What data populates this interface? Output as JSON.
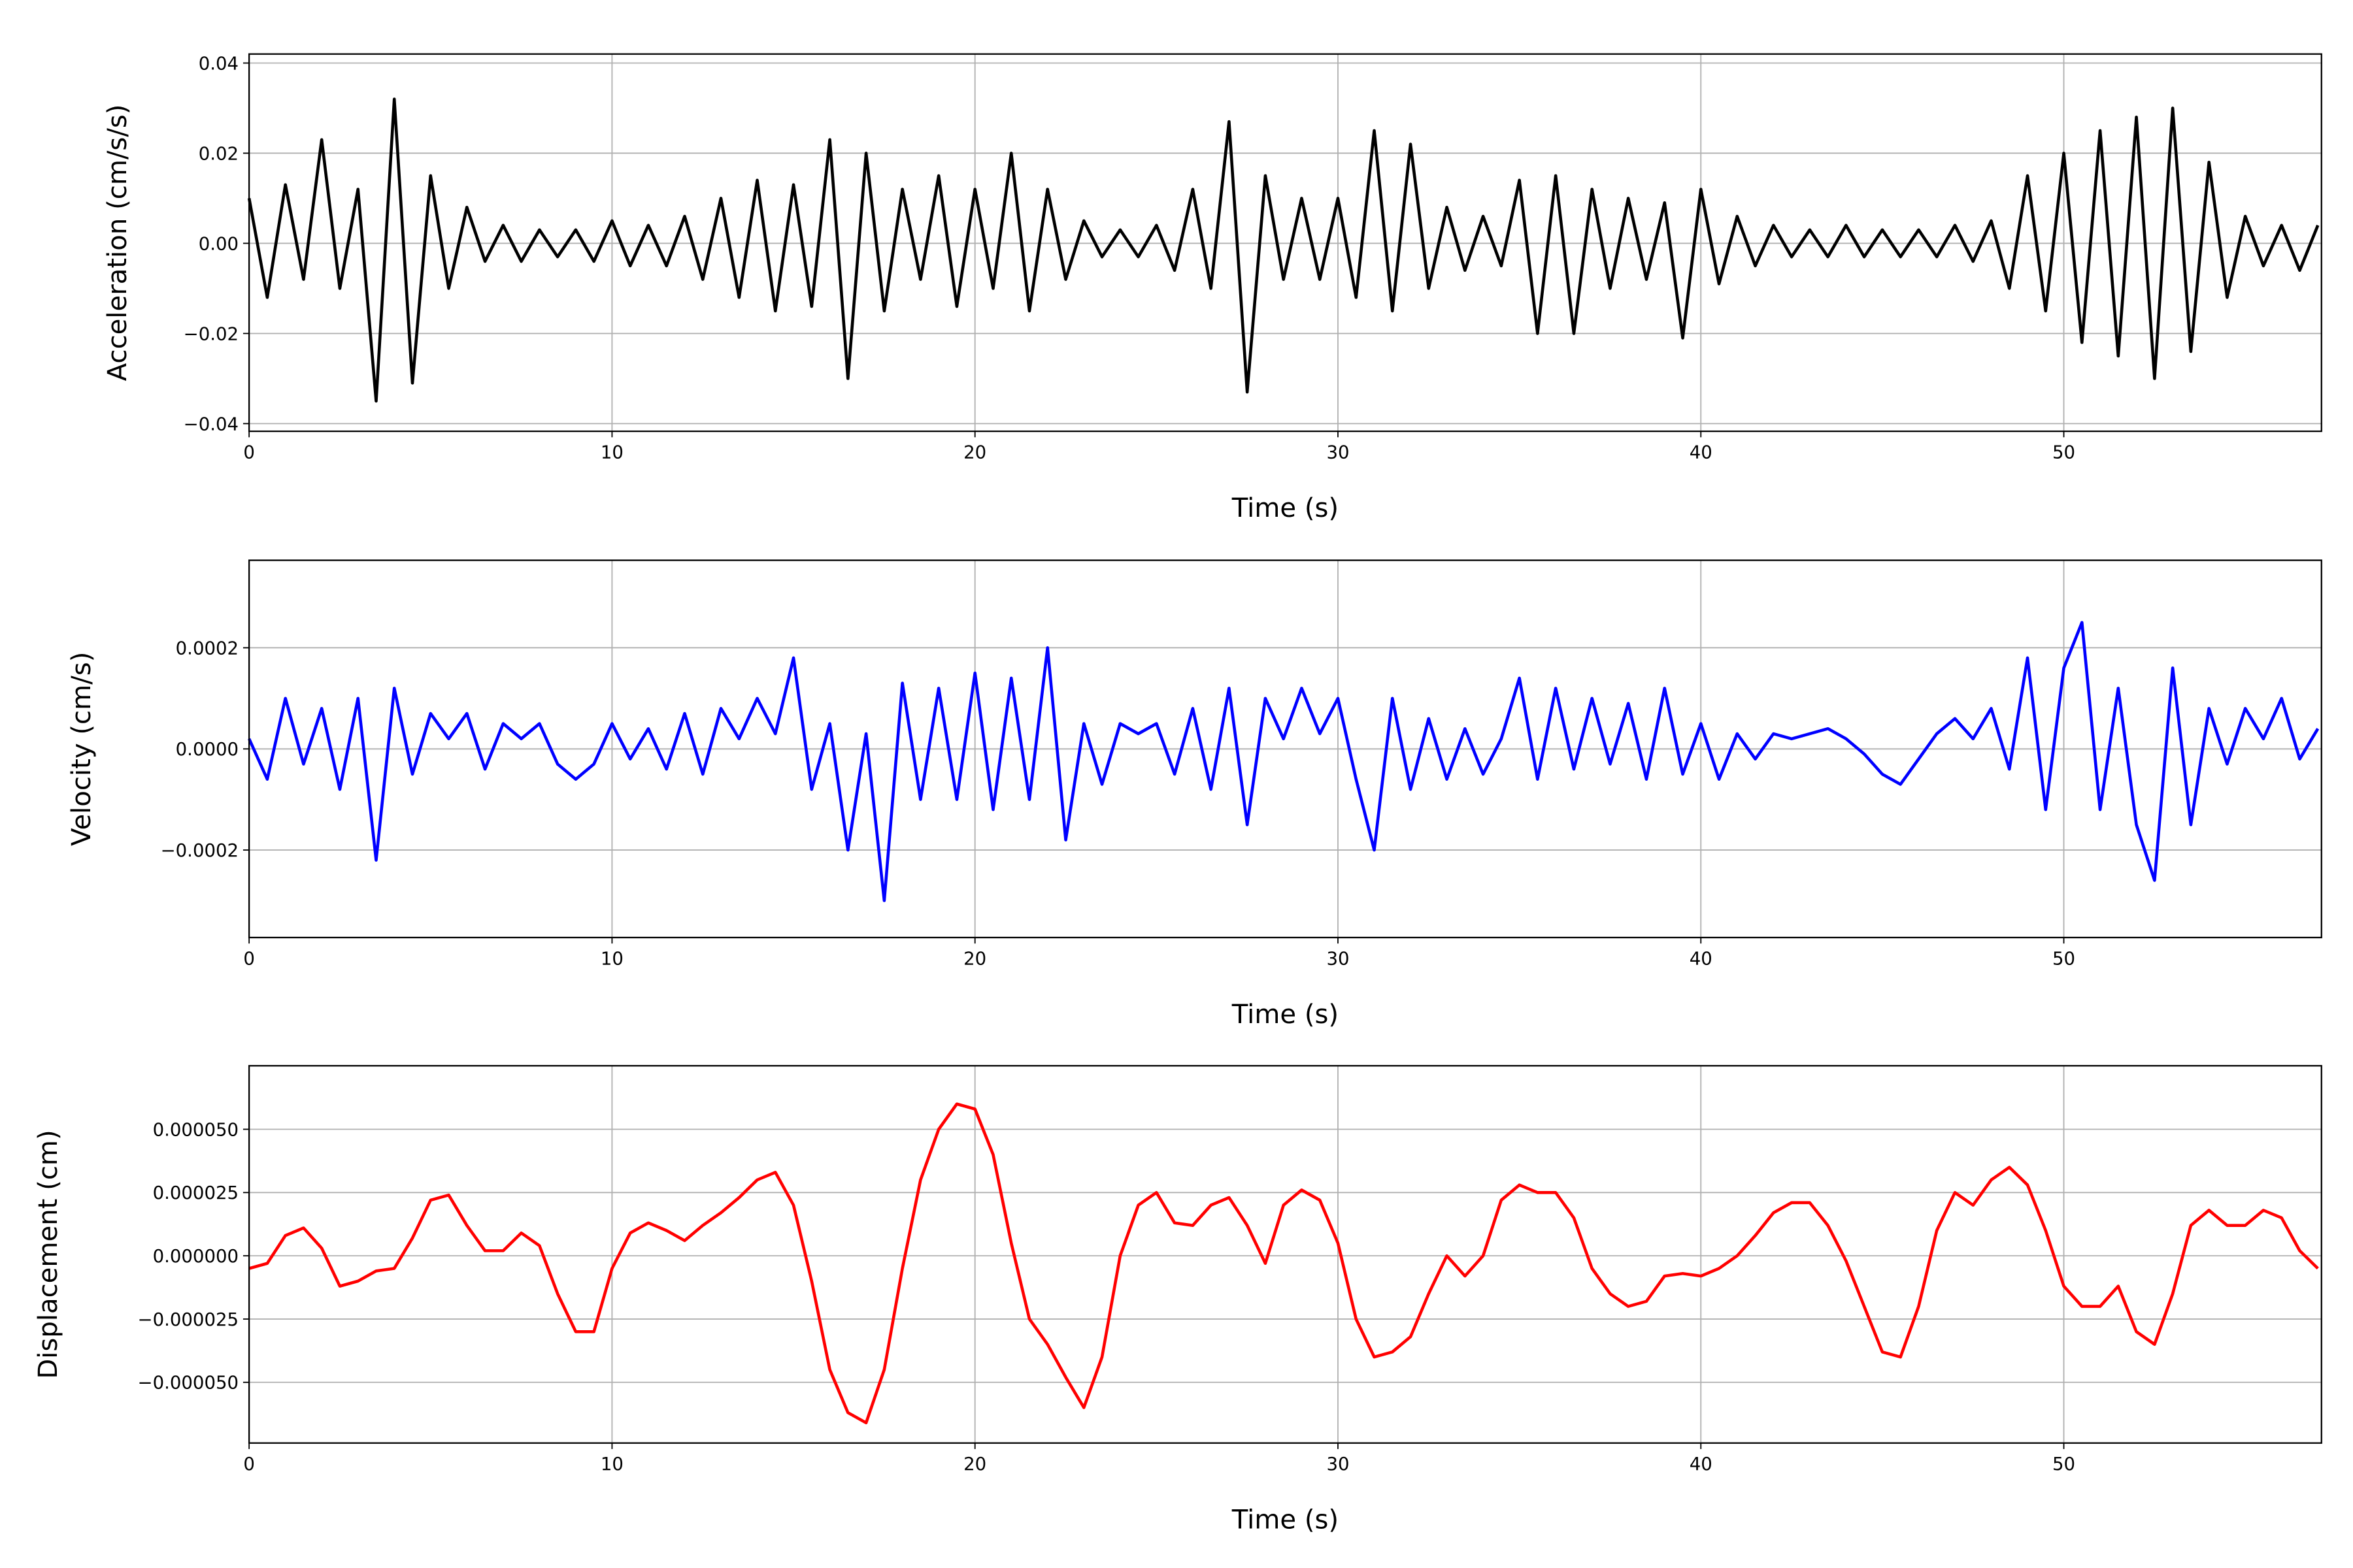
{
  "chart_data": [
    {
      "type": "line",
      "color": "#000000",
      "xlabel": "Time (s)",
      "ylabel": "Acceleration (cm/s/s)",
      "grid": true,
      "xlim": [
        0,
        57.1
      ],
      "xticks": [
        0,
        10,
        20,
        30,
        40,
        50
      ],
      "ylim": [
        -0.0417,
        0.042
      ],
      "yticks": [
        {
          "value": -0.04,
          "label": "−0.04"
        },
        {
          "value": -0.02,
          "label": "−0.02"
        },
        {
          "value": 0,
          "label": "0.00"
        },
        {
          "value": 0.02,
          "label": "0.02"
        },
        {
          "value": 0.04,
          "label": "0.04"
        }
      ],
      "x": [
        0,
        0.5,
        1,
        1.5,
        2,
        2.5,
        3,
        3.5,
        4,
        4.5,
        5,
        5.5,
        6,
        6.5,
        7,
        7.5,
        8,
        8.5,
        9,
        9.5,
        10,
        10.5,
        11,
        11.5,
        12,
        12.5,
        13,
        13.5,
        14,
        14.5,
        15,
        15.5,
        16,
        16.5,
        17,
        17.5,
        18,
        18.5,
        19,
        19.5,
        20,
        20.5,
        21,
        21.5,
        22,
        22.5,
        23,
        23.5,
        24,
        24.5,
        25,
        25.5,
        26,
        26.5,
        27,
        27.5,
        28,
        28.5,
        29,
        29.5,
        30,
        30.5,
        31,
        31.5,
        32,
        32.5,
        33,
        33.5,
        34,
        34.5,
        35,
        35.5,
        36,
        36.5,
        37,
        37.5,
        38,
        38.5,
        39,
        39.5,
        40,
        40.5,
        41,
        41.5,
        42,
        42.5,
        43,
        43.5,
        44,
        44.5,
        45,
        45.5,
        46,
        46.5,
        47,
        47.5,
        48,
        48.5,
        49,
        49.5,
        50,
        50.5,
        51,
        51.5,
        52,
        52.5,
        53,
        53.5,
        54,
        54.5,
        55,
        55.5,
        56,
        56.5,
        57
      ],
      "values": [
        0.01,
        -0.012,
        0.013,
        -0.008,
        0.023,
        -0.01,
        0.012,
        -0.035,
        0.032,
        -0.031,
        0.015,
        -0.01,
        0.008,
        -0.004,
        0.004,
        -0.004,
        0.003,
        -0.003,
        0.003,
        -0.004,
        0.005,
        -0.005,
        0.004,
        -0.005,
        0.006,
        -0.008,
        0.01,
        -0.012,
        0.014,
        -0.015,
        0.013,
        -0.014,
        0.023,
        -0.03,
        0.02,
        -0.015,
        0.012,
        -0.008,
        0.015,
        -0.014,
        0.012,
        -0.01,
        0.02,
        -0.015,
        0.012,
        -0.008,
        0.005,
        -0.003,
        0.003,
        -0.003,
        0.004,
        -0.006,
        0.012,
        -0.01,
        0.027,
        -0.033,
        0.015,
        -0.008,
        0.01,
        -0.008,
        0.01,
        -0.012,
        0.025,
        -0.015,
        0.022,
        -0.01,
        0.008,
        -0.006,
        0.006,
        -0.005,
        0.014,
        -0.02,
        0.015,
        -0.02,
        0.012,
        -0.01,
        0.01,
        -0.008,
        0.009,
        -0.021,
        0.012,
        -0.009,
        0.006,
        -0.005,
        0.004,
        -0.003,
        0.003,
        -0.003,
        0.004,
        -0.003,
        0.003,
        -0.003,
        0.003,
        -0.003,
        0.004,
        -0.004,
        0.005,
        -0.01,
        0.015,
        -0.015,
        0.02,
        -0.022,
        0.025,
        -0.025,
        0.028,
        -0.03,
        0.03,
        -0.024,
        0.018,
        -0.012,
        0.006,
        -0.005,
        0.004,
        -0.006,
        0.004
      ]
    },
    {
      "type": "line",
      "color": "#0000ff",
      "xlabel": "Time (s)",
      "ylabel": "Velocity (cm/s)",
      "grid": true,
      "xlim": [
        0,
        57.1
      ],
      "xticks": [
        0,
        10,
        20,
        30,
        40,
        50
      ],
      "ylim": [
        -0.000373,
        0.000373
      ],
      "yticks": [
        {
          "value": -0.0002,
          "label": "−0.0002"
        },
        {
          "value": 0,
          "label": "0.0000"
        },
        {
          "value": 0.0002,
          "label": "0.0002"
        }
      ],
      "x": [
        0,
        0.5,
        1,
        1.5,
        2,
        2.5,
        3,
        3.5,
        4,
        4.5,
        5,
        5.5,
        6,
        6.5,
        7,
        7.5,
        8,
        8.5,
        9,
        9.5,
        10,
        10.5,
        11,
        11.5,
        12,
        12.5,
        13,
        13.5,
        14,
        14.5,
        15,
        15.5,
        16,
        16.5,
        17,
        17.5,
        18,
        18.5,
        19,
        19.5,
        20,
        20.5,
        21,
        21.5,
        22,
        22.5,
        23,
        23.5,
        24,
        24.5,
        25,
        25.5,
        26,
        26.5,
        27,
        27.5,
        28,
        28.5,
        29,
        29.5,
        30,
        30.5,
        31,
        31.5,
        32,
        32.5,
        33,
        33.5,
        34,
        34.5,
        35,
        35.5,
        36,
        36.5,
        37,
        37.5,
        38,
        38.5,
        39,
        39.5,
        40,
        40.5,
        41,
        41.5,
        42,
        42.5,
        43,
        43.5,
        44,
        44.5,
        45,
        45.5,
        46,
        46.5,
        47,
        47.5,
        48,
        48.5,
        49,
        49.5,
        50,
        50.5,
        51,
        51.5,
        52,
        52.5,
        53,
        53.5,
        54,
        54.5,
        55,
        55.5,
        56,
        56.5,
        57
      ],
      "values": [
        2e-05,
        -6e-05,
        0.0001,
        -3e-05,
        8e-05,
        -8e-05,
        0.0001,
        -0.00022,
        0.00012,
        -5e-05,
        7e-05,
        2e-05,
        7e-05,
        -4e-05,
        5e-05,
        2e-05,
        5e-05,
        -3e-05,
        -6e-05,
        -3e-05,
        5e-05,
        -2e-05,
        4e-05,
        -4e-05,
        7e-05,
        -5e-05,
        8e-05,
        2e-05,
        0.0001,
        3e-05,
        0.00018,
        -8e-05,
        5e-05,
        -0.0002,
        3e-05,
        -0.0003,
        0.00013,
        -0.0001,
        0.00012,
        -0.0001,
        0.00015,
        -0.00012,
        0.00014,
        -0.0001,
        0.0002,
        -0.00018,
        5e-05,
        -7e-05,
        5e-05,
        3e-05,
        5e-05,
        -5e-05,
        8e-05,
        -8e-05,
        0.00012,
        -0.00015,
        0.0001,
        2e-05,
        0.00012,
        3e-05,
        0.0001,
        -6e-05,
        -0.0002,
        0.0001,
        -8e-05,
        6e-05,
        -6e-05,
        4e-05,
        -5e-05,
        2e-05,
        0.00014,
        -6e-05,
        0.00012,
        -4e-05,
        0.0001,
        -3e-05,
        9e-05,
        -6e-05,
        0.00012,
        -5e-05,
        5e-05,
        -6e-05,
        3e-05,
        -2e-05,
        3e-05,
        2e-05,
        3e-05,
        4e-05,
        2e-05,
        -1e-05,
        -5e-05,
        -7e-05,
        -2e-05,
        3e-05,
        6e-05,
        2e-05,
        8e-05,
        -4e-05,
        0.00018,
        -0.00012,
        0.00016,
        0.00025,
        -0.00012,
        0.00012,
        -0.00015,
        -0.00026,
        0.00016,
        -0.00015,
        8e-05,
        -3e-05,
        8e-05,
        2e-05,
        0.0001,
        -2e-05,
        4e-05
      ]
    },
    {
      "type": "line",
      "color": "#ff0000",
      "xlabel": "Time (s)",
      "ylabel": "Displacement (cm)",
      "grid": true,
      "xlim": [
        0,
        57.1
      ],
      "xticks": [
        0,
        10,
        20,
        30,
        40,
        50
      ],
      "ylim": [
        -7.4e-05,
        7.51e-05
      ],
      "yticks": [
        {
          "value": -5e-05,
          "label": "−0.000050"
        },
        {
          "value": -2.5e-05,
          "label": "−0.000025"
        },
        {
          "value": 0,
          "label": "0.000000"
        },
        {
          "value": 2.5e-05,
          "label": "0.000025"
        },
        {
          "value": 5e-05,
          "label": "0.000050"
        }
      ],
      "x": [
        0,
        0.5,
        1,
        1.5,
        2,
        2.5,
        3,
        3.5,
        4,
        4.5,
        5,
        5.5,
        6,
        6.5,
        7,
        7.5,
        8,
        8.5,
        9,
        9.5,
        10,
        10.5,
        11,
        11.5,
        12,
        12.5,
        13,
        13.5,
        14,
        14.5,
        15,
        15.5,
        16,
        16.5,
        17,
        17.5,
        18,
        18.5,
        19,
        19.5,
        20,
        20.5,
        21,
        21.5,
        22,
        22.5,
        23,
        23.5,
        24,
        24.5,
        25,
        25.5,
        26,
        26.5,
        27,
        27.5,
        28,
        28.5,
        29,
        29.5,
        30,
        30.5,
        31,
        31.5,
        32,
        32.5,
        33,
        33.5,
        34,
        34.5,
        35,
        35.5,
        36,
        36.5,
        37,
        37.5,
        38,
        38.5,
        39,
        39.5,
        40,
        40.5,
        41,
        41.5,
        42,
        42.5,
        43,
        43.5,
        44,
        44.5,
        45,
        45.5,
        46,
        46.5,
        47,
        47.5,
        48,
        48.5,
        49,
        49.5,
        50,
        50.5,
        51,
        51.5,
        52,
        52.5,
        53,
        53.5,
        54,
        54.5,
        55,
        55.5,
        56,
        56.5,
        57
      ],
      "values": [
        -5e-06,
        -3e-06,
        8e-06,
        1.1e-05,
        3e-06,
        -1.2e-05,
        -1e-05,
        -6e-06,
        -5e-06,
        7e-06,
        2.2e-05,
        2.4e-05,
        1.2e-05,
        2e-06,
        2e-06,
        9e-06,
        4e-06,
        -1.5e-05,
        -3e-05,
        -3e-05,
        -5e-06,
        9e-06,
        1.3e-05,
        1e-05,
        6e-06,
        1.2e-05,
        1.7e-05,
        2.3e-05,
        3e-05,
        3.3e-05,
        2e-05,
        -1e-05,
        -4.5e-05,
        -6.2e-05,
        -6.6e-05,
        -4.5e-05,
        -5e-06,
        3e-05,
        5e-05,
        6e-05,
        5.8e-05,
        4e-05,
        5e-06,
        -2.5e-05,
        -3.5e-05,
        -4.8e-05,
        -6e-05,
        -4e-05,
        0,
        2e-05,
        2.5e-05,
        1.3e-05,
        1.2e-05,
        2e-05,
        2.3e-05,
        1.2e-05,
        -3e-06,
        2e-05,
        2.6e-05,
        2.2e-05,
        5e-06,
        -2.5e-05,
        -4e-05,
        -3.8e-05,
        -3.2e-05,
        -1.5e-05,
        0,
        -8e-06,
        0,
        2.2e-05,
        2.8e-05,
        2.5e-05,
        2.5e-05,
        1.5e-05,
        -5e-06,
        -1.5e-05,
        -2e-05,
        -1.8e-05,
        -8e-06,
        -7e-06,
        -8e-06,
        -5e-06,
        0,
        8e-06,
        1.7e-05,
        2.1e-05,
        2.1e-05,
        1.2e-05,
        -2e-06,
        -2e-05,
        -3.8e-05,
        -4e-05,
        -2e-05,
        1e-05,
        2.5e-05,
        2e-05,
        3e-05,
        3.5e-05,
        2.8e-05,
        1e-05,
        -1.2e-05,
        -2e-05,
        -2e-05,
        -1.2e-05,
        -3e-05,
        -3.5e-05,
        -1.5e-05,
        1.2e-05,
        1.8e-05,
        1.2e-05,
        1.2e-05,
        1.8e-05,
        1.5e-05,
        2e-06,
        -5e-06
      ]
    }
  ]
}
